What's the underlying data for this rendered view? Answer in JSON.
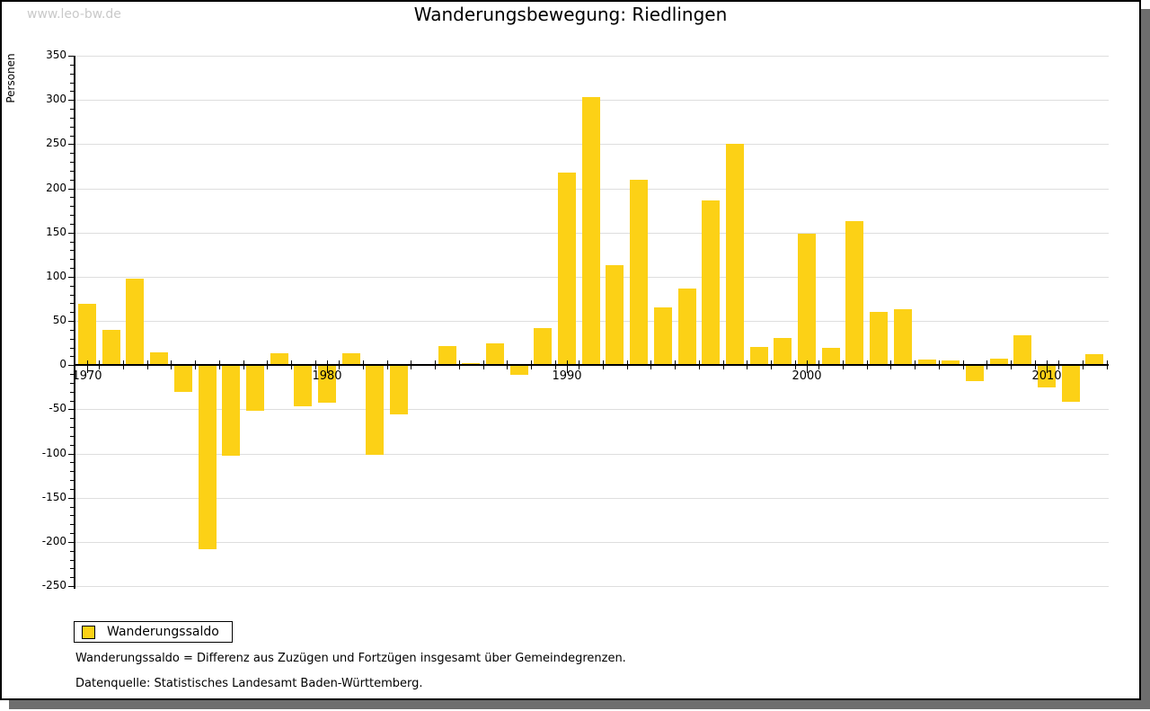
{
  "watermark": "www.leo-bw.de",
  "title": "Wanderungsbewegung: Riedlingen",
  "legend": {
    "label": "Wanderungssaldo"
  },
  "footnotes": [
    "Wanderungssaldo = Differenz aus Zuzügen und Fortzügen insgesamt über Gemeindegrenzen.",
    "Datenquelle: Statistisches Landesamt Baden-Württemberg."
  ],
  "colors": {
    "bar": "#FCD116",
    "grid": "#dedede",
    "axis": "#000000",
    "watermark": "#c9c9c9",
    "frame_shadow": "#6e6e6e"
  },
  "chart_data": {
    "type": "bar",
    "title": "Wanderungsbewegung: Riedlingen",
    "series_name": "Wanderungssaldo",
    "xlabel": "",
    "ylabel": "Personen",
    "ylim": [
      -250,
      350
    ],
    "ytick_step": 50,
    "y_minor_step": 10,
    "grid": true,
    "legend_position": "bottom-left",
    "x_ticks": [
      1970,
      1980,
      1990,
      2000,
      2010
    ],
    "categories": [
      1970,
      1971,
      1972,
      1973,
      1974,
      1975,
      1976,
      1977,
      1978,
      1979,
      1980,
      1981,
      1982,
      1983,
      1984,
      1985,
      1986,
      1987,
      1988,
      1989,
      1990,
      1991,
      1992,
      1993,
      1994,
      1995,
      1996,
      1997,
      1998,
      1999,
      2000,
      2001,
      2002,
      2003,
      2004,
      2005,
      2006,
      2007,
      2008,
      2009,
      2010,
      2011,
      2012
    ],
    "values": [
      69,
      40,
      98,
      14,
      -29,
      -207,
      -102,
      -51,
      13,
      -46,
      -42,
      13,
      -101,
      -55,
      0,
      22,
      2,
      25,
      -10,
      42,
      218,
      303,
      113,
      210,
      65,
      87,
      186,
      250,
      21,
      31,
      149,
      20,
      163,
      60,
      63,
      6,
      5,
      -17,
      7,
      34,
      -24,
      -41,
      12
    ]
  }
}
